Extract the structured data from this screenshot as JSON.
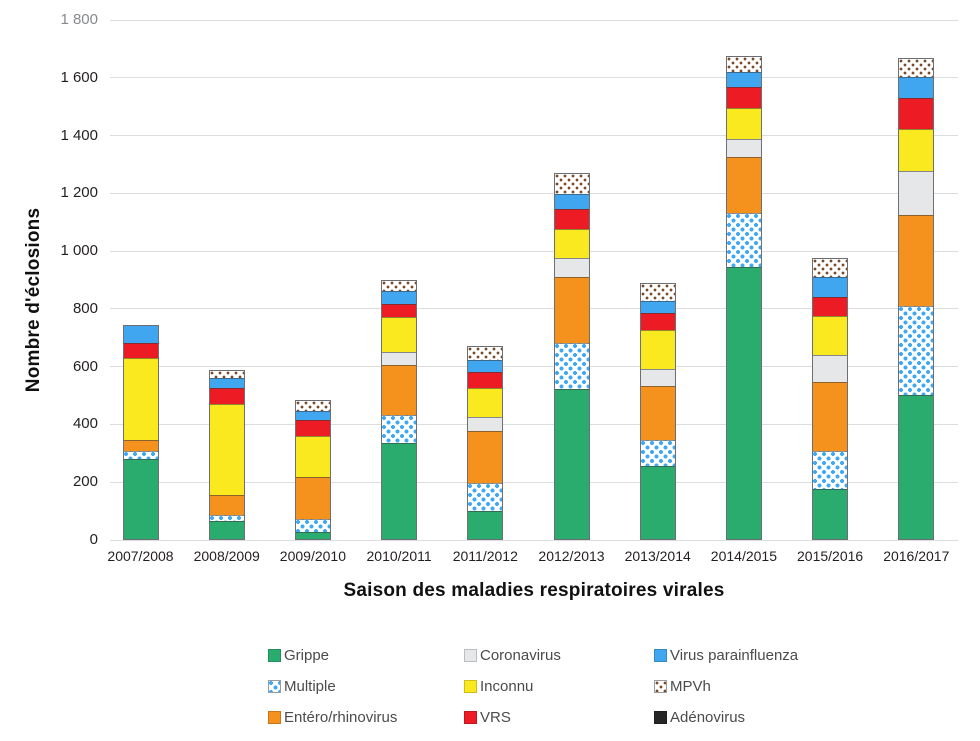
{
  "chart_data": {
    "type": "bar",
    "stacked": true,
    "title": "",
    "xlabel": "Saison des maladies respiratoires virales",
    "ylabel": "Nombre d'éclosions",
    "ylim": [
      0,
      1800
    ],
    "y_tick_step": 200,
    "y_tick_labels": [
      "0",
      "200",
      "400",
      "600",
      "800",
      "1 000",
      "1 200",
      "1 400",
      "1 600",
      "1 800"
    ],
    "grid": true,
    "legend_position": "bottom",
    "categories": [
      "2007/2008",
      "2008/2009",
      "2009/2010",
      "2010/2011",
      "2011/2012",
      "2012/2013",
      "2013/2014",
      "2014/2015",
      "2015/2016",
      "2016/2017"
    ],
    "series": [
      {
        "name": "Grippe",
        "key": "grippe",
        "style": "solid",
        "color": "#2bac6f",
        "values": [
          285,
          70,
          30,
          340,
          105,
          525,
          260,
          950,
          180,
          505
        ]
      },
      {
        "name": "Multiple",
        "key": "multiple",
        "style": "dots",
        "color": "#3fa9f5",
        "values": [
          25,
          20,
          45,
          95,
          95,
          160,
          90,
          185,
          130,
          310
        ]
      },
      {
        "name": "Entéro/rhinovirus",
        "key": "entero",
        "style": "solid",
        "color": "#f5921e",
        "values": [
          40,
          70,
          145,
          175,
          180,
          230,
          185,
          195,
          240,
          315
        ]
      },
      {
        "name": "Coronavirus",
        "key": "coronavirus",
        "style": "solid",
        "color": "#e6e7e8",
        "values": [
          0,
          0,
          0,
          45,
          50,
          65,
          60,
          60,
          95,
          150
        ]
      },
      {
        "name": "Inconnu",
        "key": "inconnu",
        "style": "solid",
        "color": "#fbe920",
        "values": [
          285,
          315,
          145,
          120,
          100,
          100,
          135,
          110,
          135,
          145
        ]
      },
      {
        "name": "VRS",
        "key": "vrs",
        "style": "solid",
        "color": "#ec1b24",
        "values": [
          50,
          55,
          55,
          45,
          55,
          70,
          60,
          70,
          65,
          110
        ]
      },
      {
        "name": "Virus parainfluenza",
        "key": "parainfluenza",
        "style": "solid",
        "color": "#41a6f0",
        "values": [
          60,
          35,
          30,
          45,
          40,
          50,
          40,
          55,
          70,
          70
        ]
      },
      {
        "name": "MPVh",
        "key": "mpvh",
        "style": "dots",
        "color": "#7a4a28",
        "values": [
          0,
          25,
          35,
          35,
          45,
          70,
          60,
          50,
          60,
          65
        ]
      },
      {
        "name": "Adénovirus",
        "key": "adenovirus",
        "style": "solid",
        "color": "#262626",
        "values": [
          0,
          0,
          0,
          0,
          0,
          0,
          0,
          0,
          0,
          0
        ]
      }
    ],
    "approx_totals": [
      745,
      590,
      485,
      900,
      670,
      1270,
      890,
      1675,
      975,
      1670
    ]
  },
  "legend": {
    "items": [
      {
        "label": "Grippe",
        "key": "grippe"
      },
      {
        "label": "Coronavirus",
        "key": "coronavirus"
      },
      {
        "label": "Virus parainfluenza",
        "key": "parainfluenza"
      },
      {
        "label": "Multiple",
        "key": "multiple"
      },
      {
        "label": "Inconnu",
        "key": "inconnu"
      },
      {
        "label": "MPVh",
        "key": "mpvh"
      },
      {
        "label": "Entéro/rhinovirus",
        "key": "entero"
      },
      {
        "label": "VRS",
        "key": "vrs"
      },
      {
        "label": "Adénovirus",
        "key": "adenovirus"
      }
    ]
  },
  "colors": {
    "background": "#ffffff",
    "gridline": "#dcddde",
    "bar_border": "#6e6f72",
    "tick_label": "#231f20",
    "top_tick_label": "#87898c",
    "legend_text": "#4b4b4d",
    "multiple_dot": "#3fa9f5",
    "mpvh_dot": "#7a4a28"
  }
}
